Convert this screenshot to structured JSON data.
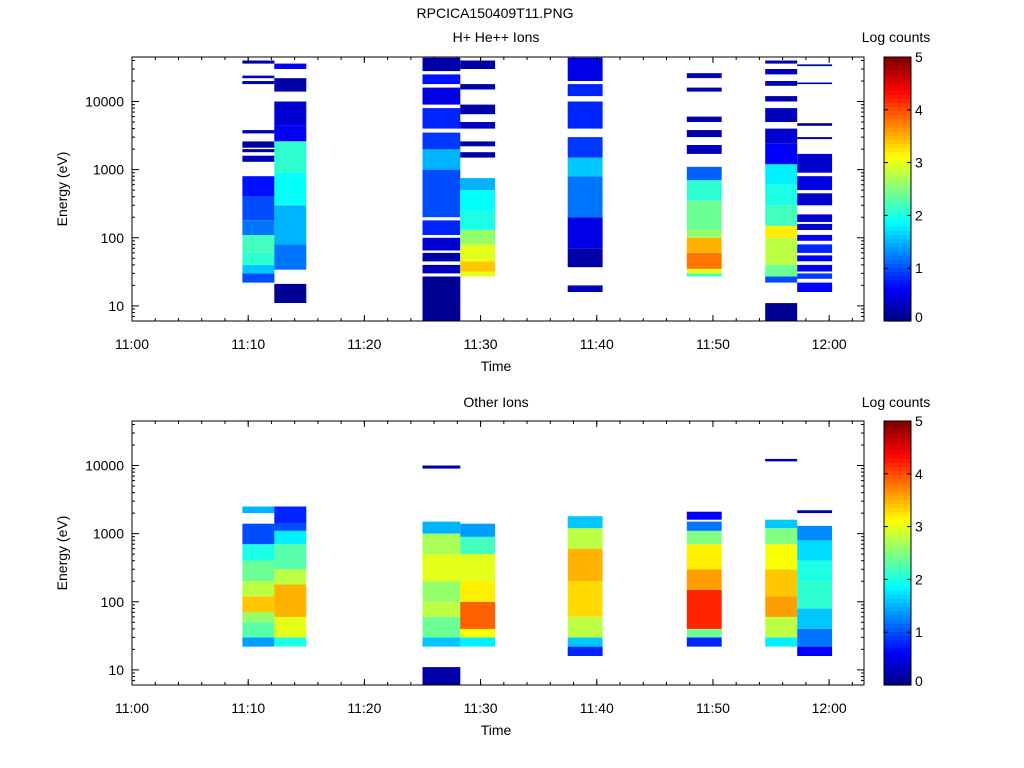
{
  "figure_title": "RPCICA150409T11.PNG",
  "chart_data": [
    {
      "type": "heatmap",
      "title": "H+ He++ Ions",
      "xlabel": "Time",
      "ylabel": "Energy (eV)",
      "y_scale": "log",
      "ylim": [
        6,
        45000
      ],
      "xlim": [
        "11:00",
        "12:03"
      ],
      "x_tick_labels": [
        "11:00",
        "11:10",
        "11:20",
        "11:30",
        "11:40",
        "11:50",
        "12:00"
      ],
      "y_tick_labels": [
        "10",
        "100",
        "1000",
        "10000"
      ],
      "colorbar": {
        "label": "Log counts",
        "range": [
          0,
          5
        ],
        "tick_labels": [
          "0",
          "1",
          "2",
          "3",
          "4",
          "5"
        ]
      },
      "columns": [
        {
          "start": "11:09:30",
          "end": "11:12:15",
          "bands": [
            [
              22,
              30,
              1.0
            ],
            [
              30,
              40,
              1.6
            ],
            [
              40,
              60,
              2.1
            ],
            [
              60,
              110,
              2.2
            ],
            [
              110,
              180,
              1.2
            ],
            [
              180,
              400,
              1.0
            ],
            [
              400,
              800,
              0.7
            ],
            [
              1300,
              1600,
              0.3
            ],
            [
              1800,
              2000,
              0.2
            ],
            [
              2100,
              2600,
              0.2
            ],
            [
              3400,
              3800,
              0.2
            ],
            [
              18000,
              20000,
              0.3
            ],
            [
              22000,
              24000,
              0.4
            ],
            [
              36000,
              40000,
              0.2
            ]
          ]
        },
        {
          "start": "11:12:15",
          "end": "11:15:00",
          "bands": [
            [
              11,
              21,
              0.1
            ],
            [
              34,
              80,
              1.2
            ],
            [
              80,
              300,
              1.5
            ],
            [
              300,
              900,
              1.9
            ],
            [
              900,
              2600,
              2.1
            ],
            [
              2600,
              4500,
              0.6
            ],
            [
              4500,
              10000,
              0.4
            ],
            [
              14000,
              22000,
              0.2
            ],
            [
              30000,
              36000,
              0.6
            ]
          ]
        },
        {
          "start": "11:25:00",
          "end": "11:28:15",
          "bands": [
            [
              6,
              27,
              0.1
            ],
            [
              30,
              40,
              0.3
            ],
            [
              45,
              60,
              0.2
            ],
            [
              65,
              100,
              0.4
            ],
            [
              110,
              180,
              0.8
            ],
            [
              200,
              1000,
              1.0
            ],
            [
              1000,
              2000,
              1.5
            ],
            [
              2000,
              3500,
              0.9
            ],
            [
              4000,
              8000,
              0.8
            ],
            [
              9000,
              16000,
              0.5
            ],
            [
              18000,
              25000,
              0.7
            ],
            [
              28000,
              44000,
              0.2
            ]
          ]
        },
        {
          "start": "11:28:15",
          "end": "11:31:15",
          "bands": [
            [
              27,
              32,
              3.0
            ],
            [
              32,
              45,
              3.4
            ],
            [
              45,
              80,
              3.0
            ],
            [
              80,
              130,
              2.6
            ],
            [
              130,
              250,
              2.0
            ],
            [
              250,
              500,
              1.9
            ],
            [
              500,
              750,
              1.5
            ],
            [
              1500,
              1800,
              0.2
            ],
            [
              2200,
              2600,
              0.2
            ],
            [
              4000,
              5000,
              0.3
            ],
            [
              6500,
              9000,
              0.2
            ],
            [
              15000,
              18000,
              0.2
            ],
            [
              30000,
              40000,
              0.2
            ]
          ]
        },
        {
          "start": "11:37:30",
          "end": "11:40:30",
          "bands": [
            [
              16,
              20,
              0.3
            ],
            [
              37,
              70,
              0.2
            ],
            [
              70,
              200,
              0.5
            ],
            [
              200,
              800,
              1.2
            ],
            [
              800,
              1500,
              1.6
            ],
            [
              1500,
              3000,
              0.9
            ],
            [
              4000,
              10000,
              0.8
            ],
            [
              12000,
              18000,
              0.8
            ],
            [
              20000,
              44000,
              0.5
            ]
          ]
        },
        {
          "start": "11:47:45",
          "end": "11:50:45",
          "bands": [
            [
              27,
              30,
              2.2
            ],
            [
              30,
              35,
              3.0
            ],
            [
              35,
              60,
              3.8
            ],
            [
              60,
              100,
              3.5
            ],
            [
              100,
              130,
              2.6
            ],
            [
              130,
              350,
              2.4
            ],
            [
              350,
              700,
              2.1
            ],
            [
              700,
              1100,
              1.1
            ],
            [
              1700,
              2300,
              0.3
            ],
            [
              3000,
              3800,
              0.2
            ],
            [
              5000,
              6000,
              0.2
            ],
            [
              14000,
              16000,
              0.2
            ],
            [
              22000,
              26000,
              0.3
            ]
          ]
        },
        {
          "start": "11:54:30",
          "end": "11:57:15",
          "bands": [
            [
              6,
              11,
              0.1
            ],
            [
              22,
              27,
              1.0
            ],
            [
              27,
              40,
              2.4
            ],
            [
              40,
              100,
              2.8
            ],
            [
              100,
              150,
              3.2
            ],
            [
              150,
              300,
              2.2
            ],
            [
              300,
              600,
              2.0
            ],
            [
              600,
              1200,
              1.8
            ],
            [
              1200,
              2400,
              0.6
            ],
            [
              2400,
              4000,
              0.4
            ],
            [
              5000,
              8000,
              0.3
            ],
            [
              10000,
              12000,
              0.2
            ],
            [
              17000,
              20000,
              0.3
            ],
            [
              25000,
              30000,
              0.3
            ],
            [
              36000,
              40000,
              0.2
            ]
          ]
        },
        {
          "start": "11:57:15",
          "end": "12:00:15",
          "bands": [
            [
              16,
              22,
              0.6
            ],
            [
              25,
              30,
              0.9
            ],
            [
              32,
              40,
              0.6
            ],
            [
              45,
              55,
              0.6
            ],
            [
              60,
              80,
              0.8
            ],
            [
              90,
              110,
              0.6
            ],
            [
              130,
              160,
              0.4
            ],
            [
              170,
              220,
              0.4
            ],
            [
              300,
              450,
              0.4
            ],
            [
              500,
              800,
              0.5
            ],
            [
              900,
              1700,
              0.4
            ],
            [
              2800,
              3000,
              0.2
            ],
            [
              4400,
              4800,
              0.2
            ],
            [
              18000,
              19000,
              0.2
            ],
            [
              33000,
              35000,
              0.2
            ]
          ]
        }
      ]
    },
    {
      "type": "heatmap",
      "title": "Other Ions",
      "xlabel": "Time",
      "ylabel": "Energy (eV)",
      "y_scale": "log",
      "ylim": [
        6,
        45000
      ],
      "xlim": [
        "11:00",
        "12:03"
      ],
      "x_tick_labels": [
        "11:00",
        "11:10",
        "11:20",
        "11:30",
        "11:40",
        "11:50",
        "12:00"
      ],
      "y_tick_labels": [
        "10",
        "100",
        "1000",
        "10000"
      ],
      "colorbar": {
        "label": "Log counts",
        "range": [
          0,
          5
        ],
        "tick_labels": [
          "0",
          "1",
          "2",
          "3",
          "4",
          "5"
        ]
      },
      "columns": [
        {
          "start": "11:09:30",
          "end": "11:12:15",
          "bands": [
            [
              22,
              30,
              1.4
            ],
            [
              30,
              50,
              2.3
            ],
            [
              50,
              70,
              2.6
            ],
            [
              70,
              120,
              3.4
            ],
            [
              120,
              200,
              2.8
            ],
            [
              200,
              400,
              2.4
            ],
            [
              400,
              700,
              2.0
            ],
            [
              700,
              1400,
              1.0
            ],
            [
              2000,
              2500,
              1.5
            ]
          ]
        },
        {
          "start": "11:12:15",
          "end": "11:15:00",
          "bands": [
            [
              22,
              30,
              2.0
            ],
            [
              30,
              60,
              3.0
            ],
            [
              60,
              180,
              3.5
            ],
            [
              180,
              300,
              2.8
            ],
            [
              300,
              700,
              2.3
            ],
            [
              700,
              1100,
              1.8
            ],
            [
              1100,
              1400,
              1.0
            ],
            [
              1400,
              2500,
              0.8
            ]
          ]
        },
        {
          "start": "11:25:00",
          "end": "11:28:15",
          "bands": [
            [
              6,
              11,
              0.2
            ],
            [
              22,
              30,
              1.6
            ],
            [
              30,
              60,
              2.4
            ],
            [
              60,
              100,
              2.8
            ],
            [
              100,
              200,
              2.6
            ],
            [
              200,
              500,
              3.0
            ],
            [
              500,
              1000,
              2.7
            ],
            [
              1000,
              1500,
              1.5
            ],
            [
              9000,
              10000,
              0.2
            ]
          ]
        },
        {
          "start": "11:28:15",
          "end": "11:31:15",
          "bands": [
            [
              22,
              30,
              1.8
            ],
            [
              30,
              40,
              3.1
            ],
            [
              40,
              100,
              3.9
            ],
            [
              100,
              200,
              3.2
            ],
            [
              200,
              500,
              3.0
            ],
            [
              500,
              900,
              2.2
            ],
            [
              900,
              1400,
              1.4
            ]
          ]
        },
        {
          "start": "11:37:30",
          "end": "11:40:30",
          "bands": [
            [
              16,
              22,
              0.8
            ],
            [
              22,
              30,
              1.6
            ],
            [
              30,
              60,
              2.8
            ],
            [
              60,
              200,
              3.3
            ],
            [
              200,
              600,
              3.5
            ],
            [
              600,
              1200,
              2.8
            ],
            [
              1200,
              1800,
              1.6
            ]
          ]
        },
        {
          "start": "11:47:45",
          "end": "11:50:45",
          "bands": [
            [
              22,
              30,
              0.8
            ],
            [
              30,
              40,
              2.4
            ],
            [
              40,
              150,
              4.2
            ],
            [
              150,
              300,
              3.6
            ],
            [
              300,
              700,
              3.2
            ],
            [
              700,
              1100,
              2.5
            ],
            [
              1100,
              1500,
              1.2
            ],
            [
              1600,
              2100,
              0.6
            ]
          ]
        },
        {
          "start": "11:54:30",
          "end": "11:57:15",
          "bands": [
            [
              22,
              30,
              1.8
            ],
            [
              30,
              60,
              2.8
            ],
            [
              60,
              120,
              3.6
            ],
            [
              120,
              300,
              3.4
            ],
            [
              300,
              700,
              3.1
            ],
            [
              700,
              1200,
              2.5
            ],
            [
              1200,
              1600,
              1.6
            ],
            [
              11500,
              12500,
              0.3
            ]
          ]
        },
        {
          "start": "11:57:15",
          "end": "12:00:15",
          "bands": [
            [
              16,
              22,
              0.6
            ],
            [
              22,
              40,
              1.2
            ],
            [
              40,
              80,
              1.6
            ],
            [
              80,
              200,
              2.1
            ],
            [
              200,
              400,
              2.0
            ],
            [
              400,
              800,
              1.7
            ],
            [
              800,
              1300,
              1.3
            ],
            [
              2000,
              2200,
              0.2
            ]
          ]
        }
      ]
    }
  ]
}
